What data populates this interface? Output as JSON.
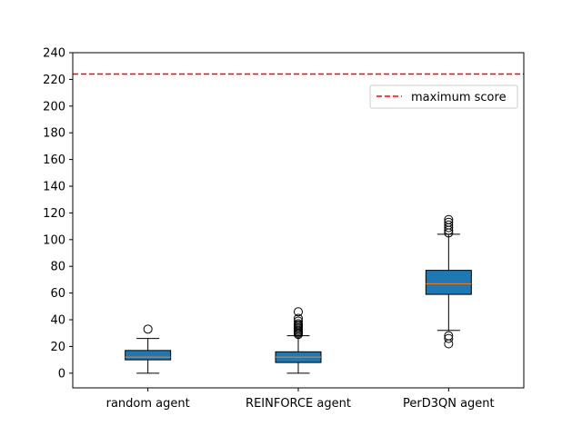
{
  "chart_data": {
    "type": "box",
    "title": "",
    "xlabel": "",
    "ylabel": "",
    "categories": [
      "random agent",
      "REINFORCE agent",
      "PerD3QN agent"
    ],
    "ylim": [
      -11,
      240
    ],
    "yticks": [
      0,
      20,
      40,
      60,
      80,
      100,
      120,
      140,
      160,
      180,
      200,
      220,
      240
    ],
    "grid": false,
    "boxes": [
      {
        "label": "random agent",
        "whisker_low": 0,
        "q1": 10,
        "median": 12,
        "q3": 17,
        "whisker_high": 26,
        "outliers": [
          33
        ]
      },
      {
        "label": "REINFORCE agent",
        "whisker_low": 0,
        "q1": 8,
        "median": 12,
        "q3": 16,
        "whisker_high": 28,
        "outliers": [
          29,
          30,
          31,
          32,
          33,
          34,
          35,
          36,
          37,
          39,
          41,
          46
        ]
      },
      {
        "label": "PerD3QN agent",
        "whisker_low": 32,
        "q1": 59,
        "median": 67,
        "q3": 77,
        "whisker_high": 104,
        "outliers": [
          22,
          26,
          28,
          105,
          107,
          109,
          111,
          113,
          115
        ]
      }
    ],
    "reference_line": {
      "label": "maximum score",
      "value": 224,
      "color": "#ff0000",
      "style": "dashed"
    },
    "box_color": "#1f77b4",
    "median_color": "#ff7f0e",
    "legend": {
      "entries": [
        "maximum score"
      ],
      "position": "upper-right"
    }
  }
}
